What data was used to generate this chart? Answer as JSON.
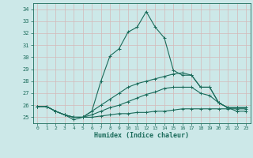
{
  "title": "",
  "xlabel": "Humidex (Indice chaleur)",
  "xlim": [
    -0.5,
    23.5
  ],
  "ylim": [
    24.5,
    34.5
  ],
  "yticks": [
    25,
    26,
    27,
    28,
    29,
    30,
    31,
    32,
    33,
    34
  ],
  "xticks": [
    0,
    1,
    2,
    3,
    4,
    5,
    6,
    7,
    8,
    9,
    10,
    11,
    12,
    13,
    14,
    15,
    16,
    17,
    18,
    19,
    20,
    21,
    22,
    23
  ],
  "bg_color": "#cce8e8",
  "line_color": "#1a6b5a",
  "grid_color": "#d4b8b8",
  "lines": [
    {
      "x": [
        0,
        1,
        2,
        3,
        4,
        5,
        6,
        7,
        8,
        9,
        10,
        11,
        12,
        13,
        14,
        15,
        16,
        17,
        18,
        19,
        20,
        21,
        22,
        23
      ],
      "y": [
        25.9,
        25.9,
        25.5,
        25.2,
        24.8,
        25.0,
        25.5,
        28.0,
        30.1,
        30.7,
        32.1,
        32.5,
        33.8,
        32.5,
        31.6,
        28.9,
        28.5,
        28.5,
        27.5,
        27.5,
        26.2,
        25.8,
        25.8,
        25.8
      ]
    },
    {
      "x": [
        0,
        1,
        2,
        3,
        4,
        5,
        6,
        7,
        8,
        9,
        10,
        11,
        12,
        13,
        14,
        15,
        16,
        17,
        18,
        19,
        20,
        21,
        22,
        23
      ],
      "y": [
        25.9,
        25.9,
        25.5,
        25.2,
        25.0,
        25.0,
        25.5,
        26.0,
        26.5,
        27.0,
        27.5,
        27.8,
        28.0,
        28.2,
        28.4,
        28.6,
        28.7,
        28.5,
        27.5,
        27.5,
        26.2,
        25.8,
        25.8,
        25.8
      ]
    },
    {
      "x": [
        0,
        1,
        2,
        3,
        4,
        5,
        6,
        7,
        8,
        9,
        10,
        11,
        12,
        13,
        14,
        15,
        16,
        17,
        18,
        19,
        20,
        21,
        22,
        23
      ],
      "y": [
        25.9,
        25.9,
        25.5,
        25.2,
        25.0,
        25.0,
        25.2,
        25.5,
        25.8,
        26.0,
        26.3,
        26.6,
        26.9,
        27.1,
        27.4,
        27.5,
        27.5,
        27.5,
        27.0,
        26.8,
        26.2,
        25.8,
        25.5,
        25.5
      ]
    },
    {
      "x": [
        0,
        1,
        2,
        3,
        4,
        5,
        6,
        7,
        8,
        9,
        10,
        11,
        12,
        13,
        14,
        15,
        16,
        17,
        18,
        19,
        20,
        21,
        22,
        23
      ],
      "y": [
        25.9,
        25.9,
        25.5,
        25.2,
        25.0,
        25.0,
        25.0,
        25.1,
        25.2,
        25.3,
        25.3,
        25.4,
        25.4,
        25.5,
        25.5,
        25.6,
        25.7,
        25.7,
        25.7,
        25.7,
        25.7,
        25.7,
        25.7,
        25.7
      ]
    }
  ]
}
